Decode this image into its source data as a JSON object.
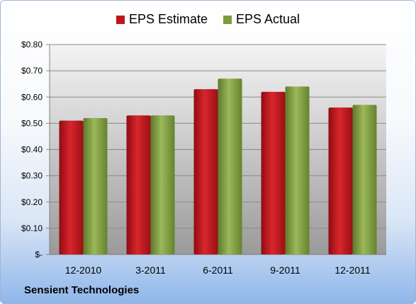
{
  "chart_data": {
    "type": "bar",
    "categories": [
      "12-2010",
      "3-2011",
      "6-2011",
      "9-2011",
      "12-2011"
    ],
    "series": [
      {
        "name": "EPS Estimate",
        "values": [
          0.51,
          0.53,
          0.63,
          0.62,
          0.56
        ]
      },
      {
        "name": "EPS Actual",
        "values": [
          0.52,
          0.53,
          0.67,
          0.64,
          0.57
        ]
      }
    ],
    "yticks": [
      "$-",
      "$0.10",
      "$0.20",
      "$0.30",
      "$0.40",
      "$0.50",
      "$0.60",
      "$0.70",
      "$0.80"
    ],
    "ylim": [
      0,
      0.8
    ],
    "grid": true,
    "legend_position": "top-center",
    "colors": {
      "EPS Estimate": "#c0151c",
      "EPS Actual": "#7d9a3c"
    }
  },
  "footer": {
    "company": "Sensient Technologies"
  }
}
